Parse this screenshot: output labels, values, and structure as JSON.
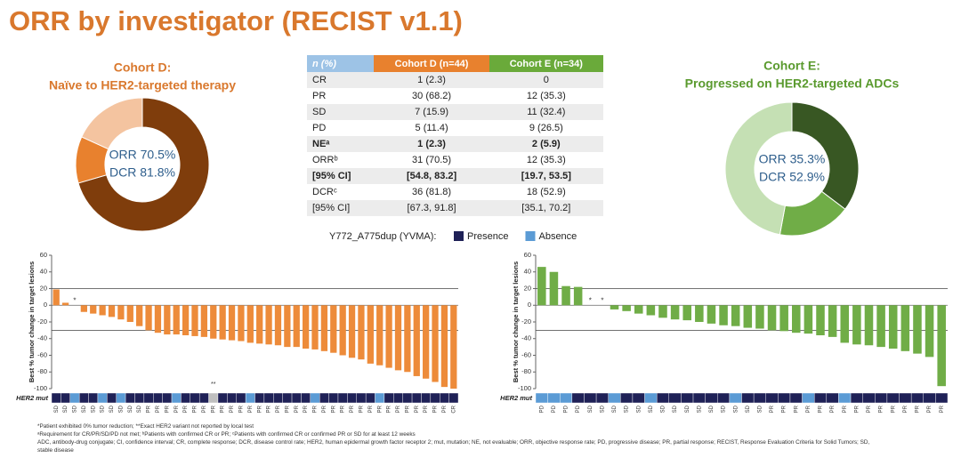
{
  "title": "ORR by investigator (RECIST v1.1)",
  "table": {
    "header": [
      "n (%)",
      "Cohort D (n=44)",
      "Cohort E (n=34)"
    ],
    "rows": [
      [
        "CR",
        "1 (2.3)",
        "0"
      ],
      [
        "PR",
        "30 (68.2)",
        "12 (35.3)"
      ],
      [
        "SD",
        "7 (15.9)",
        "11 (32.4)"
      ],
      [
        "PD",
        "5 (11.4)",
        "9 (26.5)"
      ],
      [
        "NEᵃ",
        "1 (2.3)",
        "2 (5.9)"
      ],
      [
        "ORRᵇ",
        "31 (70.5)",
        "12 (35.3)"
      ],
      [
        "[95% CI]",
        "[54.8, 83.2]",
        "[19.7, 53.5]"
      ],
      [
        "DCRᶜ",
        "36 (81.8)",
        "18 (52.9)"
      ],
      [
        "[95% CI]",
        "[67.3, 91.8]",
        "[35.1, 70.2]"
      ]
    ]
  },
  "legend": {
    "title": "Y772_A775dup (YVMA):",
    "items": [
      {
        "name": "Presence",
        "color": "#1f2157"
      },
      {
        "name": "Absence",
        "color": "#5b9bd5"
      }
    ]
  },
  "chart_data": [
    {
      "type": "donut",
      "title": [
        "Cohort D:",
        "Naïve to HER2-targeted therapy"
      ],
      "title_color": "#d9782d",
      "values": [
        70.5,
        11.3,
        18.2
      ],
      "colors": [
        "#7f3d0c",
        "#e8812e",
        "#f4c4a0"
      ],
      "center_labels": [
        "ORR 70.5%",
        "DCR 81.8%"
      ]
    },
    {
      "type": "donut",
      "title": [
        "Cohort E:",
        "Progressed on HER2-targeted ADCs"
      ],
      "title_color": "#5a9a2e",
      "values": [
        35.3,
        17.6,
        47.1
      ],
      "colors": [
        "#385723",
        "#70ad47",
        "#c5e0b4"
      ],
      "center_labels": [
        "ORR 35.3%",
        "DCR 52.9%"
      ]
    },
    {
      "type": "waterfall",
      "y_label": "Best % tumor change in target lesions",
      "row_label": "HER2 mut",
      "color": "#ed8b3a",
      "ylim": [
        -100,
        60
      ],
      "yticks": [
        -100,
        -80,
        -60,
        -40,
        -20,
        0,
        20,
        40,
        60
      ],
      "ref_lines": [
        20,
        -30
      ],
      "values": [
        19,
        3,
        0,
        -8,
        -10,
        -12,
        -14,
        -17,
        -20,
        -25,
        -30,
        -33,
        -35,
        -35,
        -36,
        -37,
        -38,
        -40,
        -41,
        -42,
        -43,
        -45,
        -46,
        -47,
        -48,
        -50,
        -50,
        -52,
        -53,
        -55,
        -57,
        -60,
        -63,
        -65,
        -70,
        -72,
        -75,
        -78,
        -80,
        -85,
        -88,
        -92,
        -98,
        -100
      ],
      "categories": [
        "SD",
        "SD",
        "SD",
        "SD",
        "SD",
        "SD",
        "SD",
        "SD",
        "SD",
        "SD",
        "PR",
        "PR",
        "PR",
        "PR",
        "PR",
        "PR",
        "PR",
        "PR",
        "PR",
        "PR",
        "PR",
        "PR",
        "PR",
        "PR",
        "PR",
        "PR",
        "PR",
        "PR",
        "PR",
        "PR",
        "PR",
        "PR",
        "PR",
        "PR",
        "PR",
        "PR",
        "PR",
        "PR",
        "PR",
        "PR",
        "PR",
        "PR",
        "PR",
        "CR"
      ],
      "her2_mut": [
        true,
        true,
        false,
        true,
        true,
        false,
        true,
        false,
        true,
        true,
        true,
        true,
        true,
        false,
        true,
        true,
        true,
        null,
        true,
        true,
        true,
        false,
        true,
        true,
        true,
        true,
        true,
        true,
        false,
        true,
        true,
        true,
        true,
        true,
        true,
        false,
        true,
        true,
        true,
        true,
        true,
        true,
        true,
        true
      ],
      "bar_annotations": [
        {
          "index": 2,
          "text": "*"
        }
      ],
      "row_annotations": [
        {
          "index": 17,
          "text": "**"
        }
      ]
    },
    {
      "type": "waterfall",
      "y_label": "Best % tumor change in target lesions",
      "row_label": "HER2 mut",
      "color": "#70ad47",
      "ylim": [
        -100,
        60
      ],
      "yticks": [
        -100,
        -80,
        -60,
        -40,
        -20,
        0,
        20,
        40,
        60
      ],
      "ref_lines": [
        20,
        -30
      ],
      "values": [
        46,
        40,
        23,
        22,
        0,
        0,
        -5,
        -7,
        -10,
        -12,
        -15,
        -17,
        -18,
        -20,
        -22,
        -24,
        -25,
        -27,
        -28,
        -30,
        -31,
        -33,
        -34,
        -36,
        -38,
        -45,
        -47,
        -48,
        -50,
        -52,
        -55,
        -58,
        -62,
        -97
      ],
      "categories": [
        "PD",
        "PD",
        "PD",
        "PD",
        "SD",
        "SD",
        "SD",
        "SD",
        "SD",
        "SD",
        "SD",
        "SD",
        "SD",
        "SD",
        "SD",
        "SD",
        "SD",
        "SD",
        "SD",
        "PR",
        "PR",
        "PR",
        "PR",
        "PR",
        "PR",
        "PR",
        "PR",
        "PR",
        "PR",
        "PR",
        "PR",
        "PR",
        "PR",
        "PR"
      ],
      "her2_mut": [
        false,
        false,
        false,
        true,
        true,
        true,
        false,
        true,
        true,
        false,
        true,
        true,
        true,
        true,
        true,
        true,
        false,
        true,
        true,
        true,
        true,
        true,
        false,
        true,
        true,
        false,
        true,
        true,
        true,
        true,
        true,
        true,
        true,
        true
      ],
      "bar_annotations": [
        {
          "index": 4,
          "text": "*"
        },
        {
          "index": 5,
          "text": "*"
        }
      ],
      "row_annotations": []
    }
  ],
  "footnotes": [
    "*Patient exhibited 0% tumor reduction; **Exact HER2 variant not reported by local test",
    "ᵃRequirement for CR/PR/SD/PD not met; ᵇPatients with confirmed CR or PR; ᶜPatients with confirmed CR or confirmed PR or SD for at least 12 weeks",
    "ADC, antibody-drug conjugate; CI, confidence interval; CR, complete response; DCR, disease control rate; HER2, human epidermal growth factor receptor 2; mut, mutation; NE, not evaluable; ORR, objective response rate; PD, progressive disease; PR, partial response; RECIST, Response Evaluation Criteria for Solid Tumors; SD,",
    "stable disease"
  ]
}
